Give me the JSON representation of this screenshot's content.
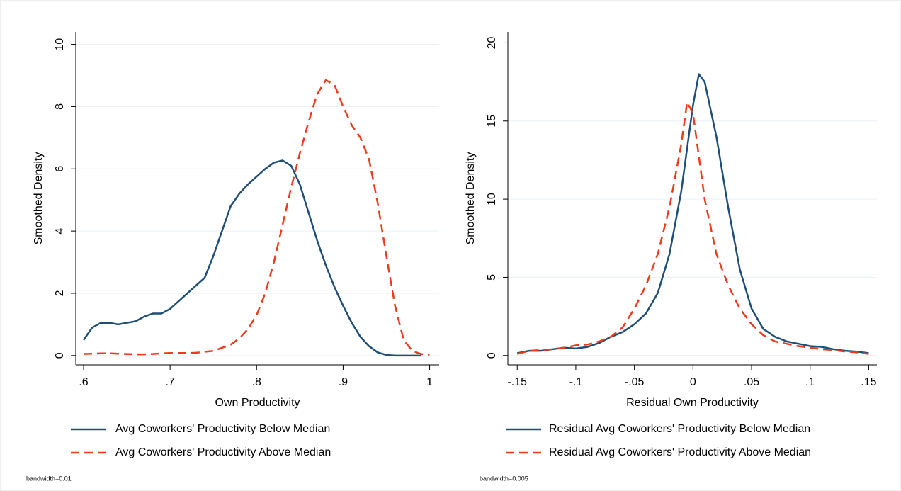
{
  "chart_data": [
    {
      "type": "line",
      "xlabel": "Own Productivity",
      "ylabel": "Smoothed Density",
      "note": "bandwidth=0.01",
      "xlim": [
        0.591,
        1.011
      ],
      "ylim": [
        -0.3,
        10.4
      ],
      "xticks": [
        {
          "value": 0.6,
          "label": ".6"
        },
        {
          "value": 0.7,
          "label": ".7"
        },
        {
          "value": 0.8,
          "label": ".8"
        },
        {
          "value": 0.9,
          "label": ".9"
        },
        1
      ],
      "yticks": [
        0,
        2,
        4,
        6,
        8,
        10
      ],
      "grid": true,
      "series": [
        {
          "name": "Avg Coworkers' Productivity Below Median",
          "color": "#1f4e79",
          "dash": "solid",
          "x": [
            0.6,
            0.61,
            0.62,
            0.63,
            0.64,
            0.65,
            0.66,
            0.67,
            0.68,
            0.69,
            0.7,
            0.71,
            0.72,
            0.73,
            0.74,
            0.75,
            0.76,
            0.77,
            0.78,
            0.79,
            0.8,
            0.81,
            0.82,
            0.83,
            0.84,
            0.85,
            0.86,
            0.87,
            0.88,
            0.89,
            0.9,
            0.91,
            0.92,
            0.93,
            0.94,
            0.95,
            0.96,
            0.97,
            0.98,
            0.99
          ],
          "values": [
            0.5,
            0.9,
            1.05,
            1.05,
            1.0,
            1.05,
            1.1,
            1.25,
            1.35,
            1.35,
            1.5,
            1.75,
            2.0,
            2.25,
            2.5,
            3.2,
            4.0,
            4.8,
            5.2,
            5.5,
            5.75,
            6.0,
            6.2,
            6.27,
            6.1,
            5.5,
            4.6,
            3.7,
            2.9,
            2.2,
            1.6,
            1.05,
            0.6,
            0.3,
            0.1,
            0.02,
            0,
            0,
            0,
            0
          ]
        },
        {
          "name": "Avg Coworkers' Productivity Above Median",
          "color": "#ee3a1a",
          "dash": "dashed",
          "x": [
            0.6,
            0.61,
            0.62,
            0.63,
            0.64,
            0.65,
            0.66,
            0.67,
            0.68,
            0.69,
            0.7,
            0.71,
            0.72,
            0.73,
            0.74,
            0.75,
            0.76,
            0.77,
            0.78,
            0.79,
            0.8,
            0.81,
            0.82,
            0.83,
            0.84,
            0.85,
            0.86,
            0.87,
            0.88,
            0.89,
            0.9,
            0.91,
            0.92,
            0.93,
            0.94,
            0.95,
            0.96,
            0.97,
            0.98,
            0.99,
            1
          ],
          "values": [
            0.05,
            0.06,
            0.07,
            0.07,
            0.06,
            0.05,
            0.04,
            0.04,
            0.05,
            0.07,
            0.08,
            0.08,
            0.08,
            0.09,
            0.12,
            0.15,
            0.25,
            0.35,
            0.55,
            0.85,
            1.3,
            2.0,
            3.0,
            4.2,
            5.4,
            6.5,
            7.5,
            8.4,
            8.85,
            8.7,
            8.0,
            7.4,
            7.0,
            6.3,
            4.9,
            3.2,
            1.6,
            0.5,
            0.15,
            0.05,
            0.03
          ]
        }
      ]
    },
    {
      "type": "line",
      "xlabel": "Residual Own Productivity",
      "ylabel": "Smoothed Density",
      "note": "bandwidth=0.005",
      "xlim": [
        -0.158,
        0.157
      ],
      "ylim": [
        -0.6,
        20.7
      ],
      "xticks": [
        {
          "value": -0.15,
          "label": "-.15"
        },
        {
          "value": -0.1,
          "label": "-.1"
        },
        {
          "value": -0.05,
          "label": "-.05"
        },
        0,
        {
          "value": 0.05,
          "label": ".05"
        },
        {
          "value": 0.1,
          "label": ".1"
        },
        {
          "value": 0.15,
          "label": ".15"
        }
      ],
      "yticks": [
        0,
        5,
        10,
        15,
        20
      ],
      "grid": true,
      "series": [
        {
          "name": "Residual Avg Coworkers' Productivity Below Median",
          "color": "#1f4e79",
          "dash": "solid",
          "x": [
            -0.15,
            -0.14,
            -0.13,
            -0.12,
            -0.11,
            -0.1,
            -0.09,
            -0.08,
            -0.07,
            -0.06,
            -0.05,
            -0.04,
            -0.03,
            -0.02,
            -0.01,
            0,
            0.005,
            0.01,
            0.02,
            0.03,
            0.04,
            0.05,
            0.06,
            0.07,
            0.08,
            0.09,
            0.1,
            0.11,
            0.12,
            0.13,
            0.14,
            0.15
          ],
          "values": [
            0.15,
            0.3,
            0.3,
            0.4,
            0.5,
            0.45,
            0.55,
            0.8,
            1.2,
            1.5,
            2.0,
            2.7,
            4.0,
            6.5,
            10.5,
            16,
            18,
            17.5,
            14,
            9.5,
            5.5,
            3.0,
            1.7,
            1.2,
            0.9,
            0.75,
            0.6,
            0.55,
            0.4,
            0.3,
            0.25,
            0.15
          ]
        },
        {
          "name": "Residual Avg Coworkers' Productivity Above Median",
          "color": "#ee3a1a",
          "dash": "dashed",
          "x": [
            -0.15,
            -0.14,
            -0.13,
            -0.12,
            -0.11,
            -0.1,
            -0.09,
            -0.08,
            -0.07,
            -0.06,
            -0.05,
            -0.04,
            -0.03,
            -0.02,
            -0.01,
            -0.005,
            0,
            0.01,
            0.02,
            0.03,
            0.04,
            0.05,
            0.06,
            0.07,
            0.08,
            0.09,
            0.1,
            0.11,
            0.12,
            0.13,
            0.14,
            0.15
          ],
          "values": [
            0.1,
            0.3,
            0.35,
            0.4,
            0.5,
            0.65,
            0.7,
            0.9,
            1.2,
            1.8,
            3.0,
            4.5,
            6.5,
            9.5,
            13.5,
            16.2,
            15.5,
            10,
            6.5,
            4.5,
            3.0,
            2.0,
            1.3,
            0.9,
            0.75,
            0.6,
            0.5,
            0.4,
            0.35,
            0.25,
            0.2,
            0.1
          ]
        }
      ]
    }
  ]
}
